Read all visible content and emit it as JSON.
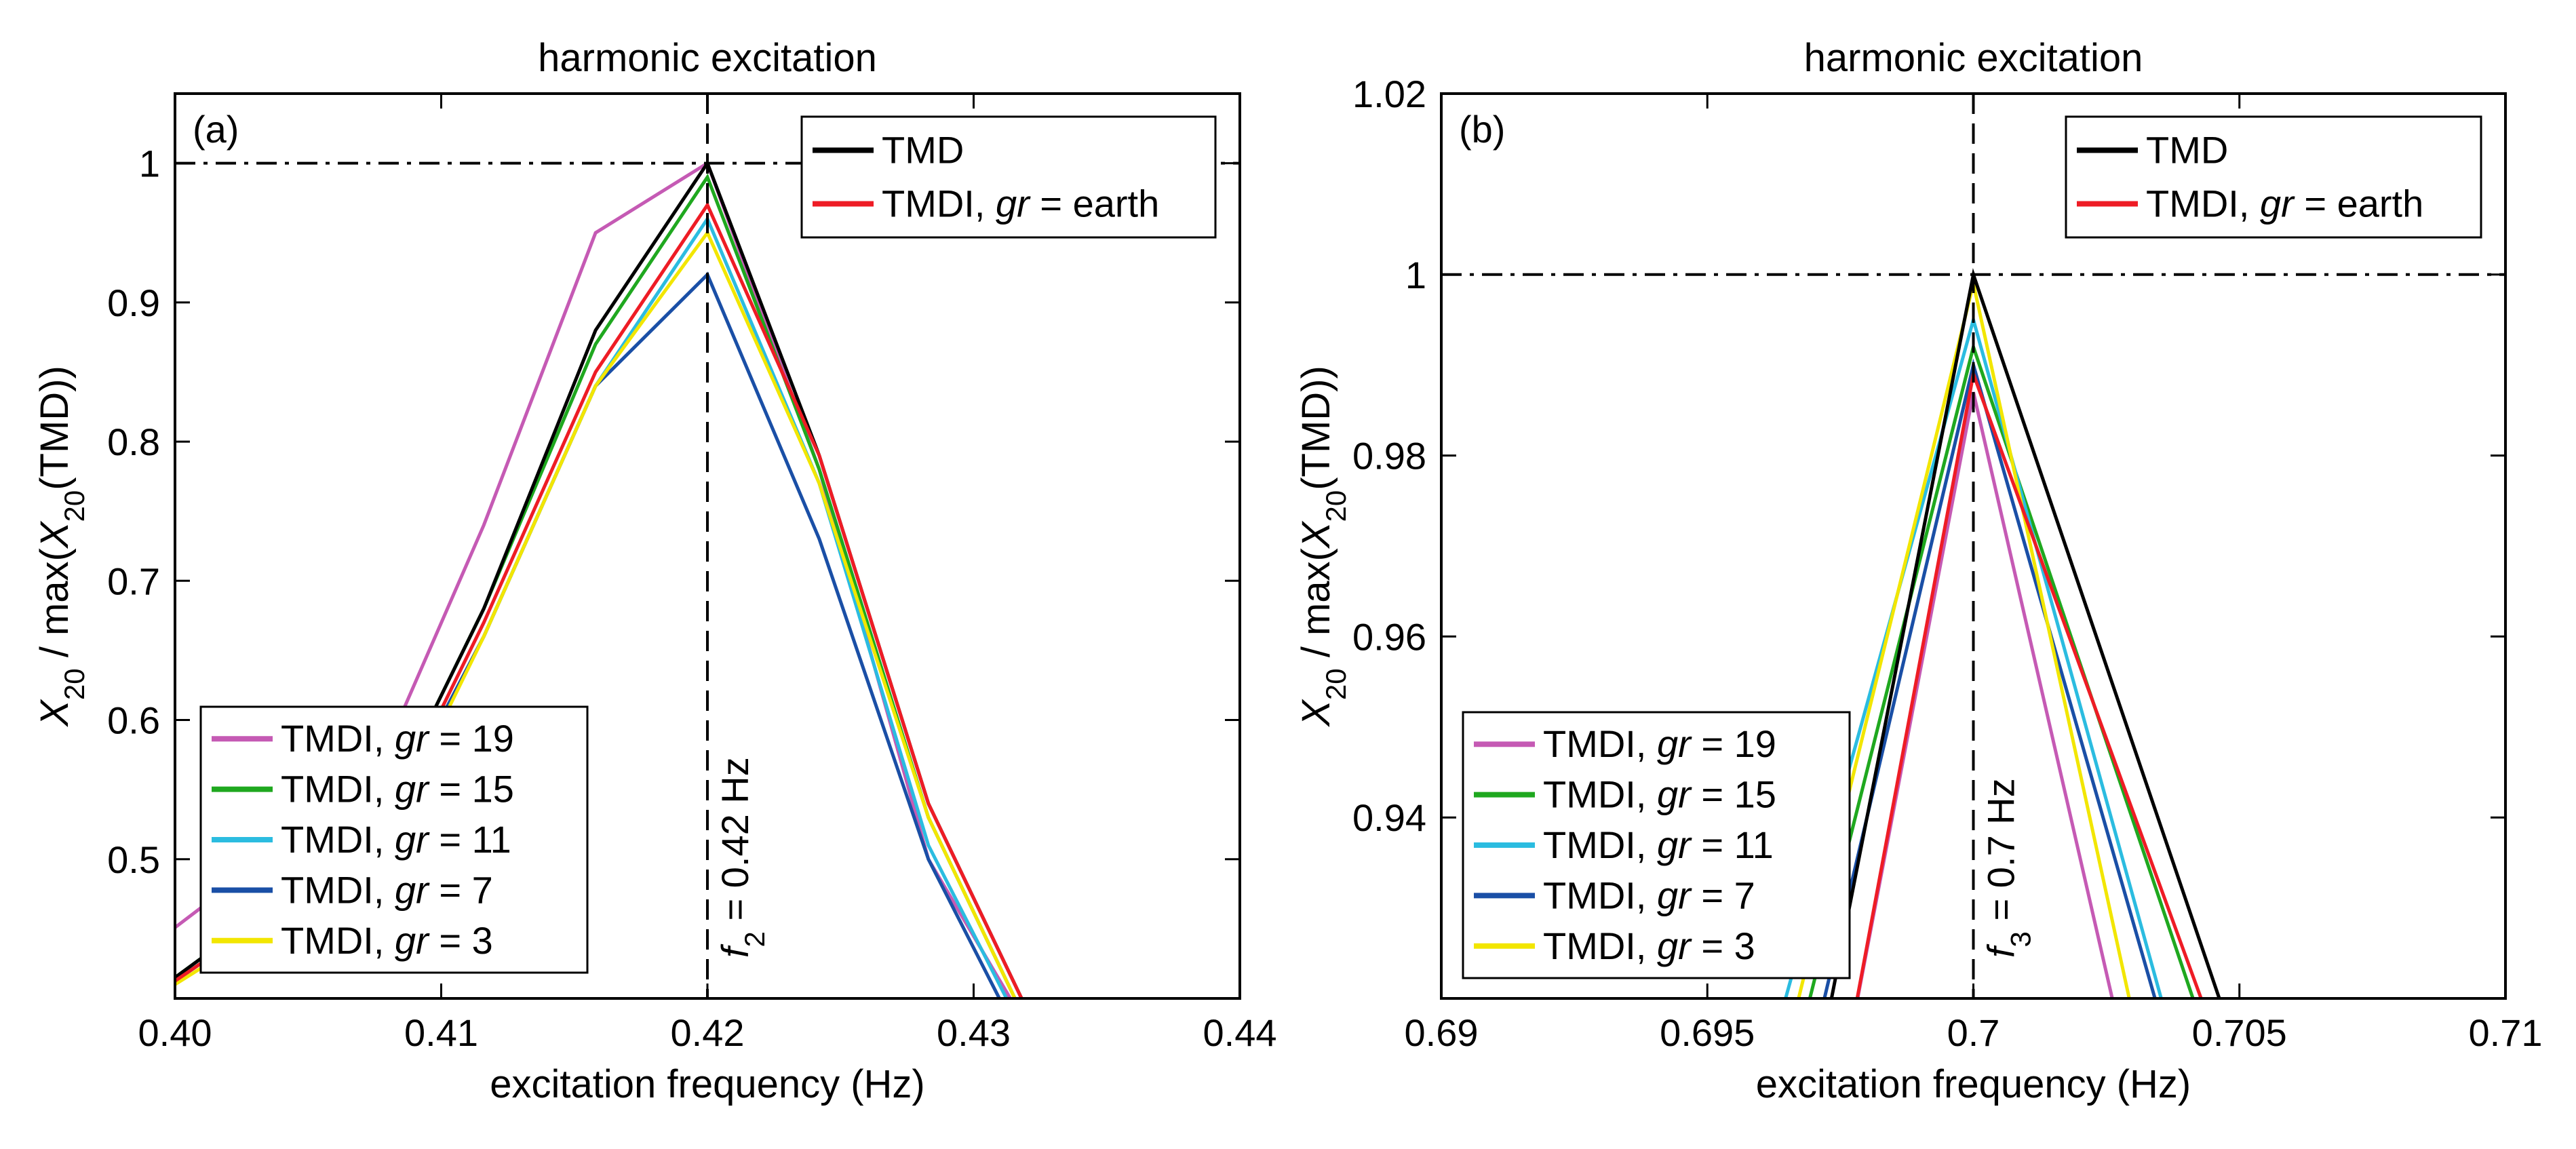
{
  "chart_data": [
    {
      "type": "line",
      "panel": "(a)",
      "title": "harmonic excitation",
      "xlabel": "excitation frequency (Hz)",
      "ylabel": "X20 / max(X20(TMD))",
      "ylabel_parts": {
        "pre": "X",
        "sub1": "20",
        "mid": " / max(",
        "x2": "X",
        "sub2": "20",
        "post": "(TMD))"
      },
      "xlim": [
        0.4,
        0.44
      ],
      "ylim": [
        0.4,
        1.05
      ],
      "xticks": [
        0.4,
        0.41,
        0.42,
        0.43,
        0.44
      ],
      "xtick_labels": [
        "0.40",
        "0.41",
        "0.42",
        "0.43",
        "0.44"
      ],
      "yticks": [
        0.5,
        0.6,
        0.7,
        0.8,
        0.9,
        1
      ],
      "ytick_labels": [
        "0.5",
        "0.6",
        "0.7",
        "0.8",
        "0.9",
        "1"
      ],
      "grid": false,
      "hline": 1,
      "vline": 0.42,
      "vline_label": {
        "f": "f",
        "sub": "2",
        "rest": " = 0.42 Hz"
      },
      "legend_top": {
        "placement": "top-right",
        "entries": [
          "TMD",
          "TMDI, gr = earth"
        ]
      },
      "legend_bottom": {
        "placement": "bottom-left",
        "entries": [
          "TMDI, gr = 19",
          "TMDI, gr = 15",
          "TMDI, gr = 11",
          "TMDI, gr = 7",
          "TMDI, gr = 3"
        ]
      },
      "series": [
        {
          "name": "TMDI, gr = 19",
          "color": "#c55ab4",
          "x": [
            0.3965,
            0.4075,
            0.4116,
            0.4158,
            0.42,
            0.4242,
            0.4283,
            0.4323
          ],
          "y": [
            0.4,
            0.56,
            0.74,
            0.95,
            1.0,
            0.78,
            0.5,
            0.37
          ]
        },
        {
          "name": "TMDI, gr = 15",
          "color": "#1fa81f",
          "x": [
            0.3975,
            0.4075,
            0.4116,
            0.4158,
            0.42,
            0.4242,
            0.4283,
            0.4323
          ],
          "y": [
            0.38,
            0.52,
            0.68,
            0.87,
            0.99,
            0.78,
            0.53,
            0.37
          ]
        },
        {
          "name": "TMDI, gr = 11",
          "color": "#2bbce0",
          "x": [
            0.3975,
            0.4075,
            0.4116,
            0.4158,
            0.42,
            0.4242,
            0.4283,
            0.4323
          ],
          "y": [
            0.38,
            0.51,
            0.66,
            0.84,
            0.96,
            0.77,
            0.51,
            0.36
          ]
        },
        {
          "name": "TMDI, gr = 7",
          "color": "#1a4fa6",
          "x": [
            0.3975,
            0.4075,
            0.4116,
            0.4158,
            0.42,
            0.4242,
            0.4283,
            0.4323
          ],
          "y": [
            0.38,
            0.51,
            0.66,
            0.84,
            0.92,
            0.73,
            0.5,
            0.35
          ]
        },
        {
          "name": "TMDI, gr = 3",
          "color": "#f2e600",
          "x": [
            0.3975,
            0.4075,
            0.4116,
            0.4158,
            0.42,
            0.4242,
            0.4283,
            0.4323
          ],
          "y": [
            0.38,
            0.5,
            0.66,
            0.84,
            0.95,
            0.77,
            0.53,
            0.37
          ]
        },
        {
          "name": "TMD",
          "color": "#000000",
          "x": [
            0.3975,
            0.4075,
            0.4116,
            0.4158,
            0.42,
            0.4242,
            0.4283,
            0.4323
          ],
          "y": [
            0.38,
            0.52,
            0.68,
            0.88,
            1.0,
            0.79,
            0.54,
            0.38
          ]
        },
        {
          "name": "TMDI, gr = earth",
          "color": "#ee1c25",
          "x": [
            0.3975,
            0.4075,
            0.4116,
            0.4158,
            0.42,
            0.4242,
            0.4283,
            0.4323
          ],
          "y": [
            0.38,
            0.51,
            0.67,
            0.85,
            0.97,
            0.79,
            0.54,
            0.38
          ]
        }
      ]
    },
    {
      "type": "line",
      "panel": "(b)",
      "title": "harmonic excitation",
      "xlabel": "excitation frequency (Hz)",
      "ylabel": "X20 / max(X20(TMD))",
      "ylabel_parts": {
        "pre": "X",
        "sub1": "20",
        "mid": " / max(",
        "x2": "X",
        "sub2": "20",
        "post": "(TMD))"
      },
      "xlim": [
        0.69,
        0.71
      ],
      "ylim": [
        0.92,
        1.02
      ],
      "xticks": [
        0.69,
        0.695,
        0.7,
        0.705,
        0.71
      ],
      "xtick_labels": [
        "0.69",
        "0.695",
        "0.7",
        "0.705",
        "0.71"
      ],
      "yticks": [
        0.94,
        0.96,
        0.98,
        1,
        1.02
      ],
      "ytick_labels": [
        "0.94",
        "0.96",
        "0.98",
        "1",
        "1.02"
      ],
      "grid": false,
      "hline": 1,
      "vline": 0.7,
      "vline_label": {
        "f": "f",
        "sub": "3",
        "rest": " = 0.7 Hz"
      },
      "legend_top": {
        "placement": "top-right",
        "entries": [
          "TMD",
          "TMDI, gr = earth"
        ]
      },
      "legend_bottom": {
        "placement": "bottom-left",
        "entries": [
          "TMDI, gr = 19",
          "TMDI, gr = 15",
          "TMDI, gr = 11",
          "TMDI, gr = 7",
          "TMDI, gr = 3"
        ]
      },
      "series": [
        {
          "name": "TMDI, gr = 19",
          "color": "#c55ab4",
          "x": [
            0.6975,
            0.7,
            0.703
          ],
          "y": [
            0.91,
            0.987,
            0.91
          ]
        },
        {
          "name": "TMDI, gr = 15",
          "color": "#1fa81f",
          "x": [
            0.6965,
            0.7,
            0.7047
          ],
          "y": [
            0.91,
            0.992,
            0.91
          ]
        },
        {
          "name": "TMDI, gr = 11",
          "color": "#2bbce0",
          "x": [
            0.696,
            0.7,
            0.704
          ],
          "y": [
            0.91,
            0.995,
            0.91
          ]
        },
        {
          "name": "TMDI, gr = 7",
          "color": "#1a4fa6",
          "x": [
            0.6968,
            0.7,
            0.7039
          ],
          "y": [
            0.91,
            0.99,
            0.91
          ]
        },
        {
          "name": "TMDI, gr = 3",
          "color": "#f2e600",
          "x": [
            0.6963,
            0.7,
            0.7033
          ],
          "y": [
            0.91,
            0.999,
            0.91
          ]
        },
        {
          "name": "TMD",
          "color": "#000000",
          "x": [
            0.697,
            0.7,
            0.7052
          ],
          "y": [
            0.91,
            1.0,
            0.91
          ]
        },
        {
          "name": "TMDI, gr = earth",
          "color": "#ee1c25",
          "x": [
            0.6975,
            0.7,
            0.7049
          ],
          "y": [
            0.91,
            0.989,
            0.91
          ]
        }
      ]
    }
  ]
}
